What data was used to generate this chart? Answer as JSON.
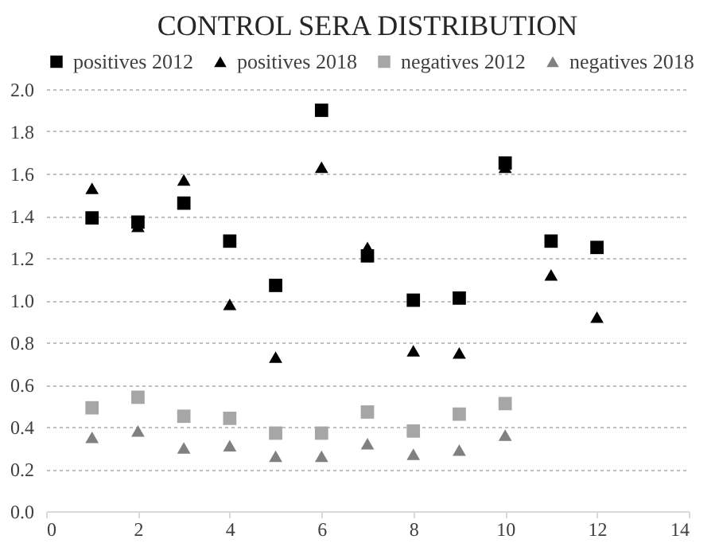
{
  "chart_data": {
    "type": "scatter",
    "title": "CONTROL SERA DISTRIBUTION",
    "x": [
      1,
      2,
      3,
      4,
      5,
      6,
      7,
      8,
      9,
      10,
      11,
      12
    ],
    "series": [
      {
        "name": "positives 2012",
        "color": "#000000",
        "marker": "square",
        "values": [
          1.39,
          1.37,
          1.46,
          1.28,
          1.07,
          1.9,
          1.21,
          1.0,
          1.01,
          1.65,
          1.28,
          1.25
        ]
      },
      {
        "name": "positives 2018",
        "color": "#000000",
        "marker": "triangle",
        "values": [
          1.53,
          1.35,
          1.57,
          0.98,
          0.73,
          1.63,
          1.25,
          0.76,
          0.75,
          1.63,
          1.12,
          0.92
        ]
      },
      {
        "name": "negatives 2012",
        "color": "#a6a6a6",
        "marker": "square",
        "values": [
          0.49,
          0.54,
          0.45,
          0.44,
          0.37,
          0.37,
          0.47,
          0.38,
          0.46,
          0.51,
          null,
          null
        ]
      },
      {
        "name": "negatives 2018",
        "color": "#808080",
        "marker": "triangle",
        "values": [
          0.35,
          0.38,
          0.3,
          0.31,
          0.26,
          0.26,
          0.32,
          0.27,
          0.29,
          0.36,
          null,
          null
        ]
      }
    ],
    "xlim": [
      0,
      14
    ],
    "xticks": [
      0,
      2,
      4,
      6,
      8,
      10,
      12,
      14
    ],
    "ylim": [
      0,
      2.0
    ],
    "yticks": [
      {
        "value": 0,
        "label": "0.0"
      },
      {
        "value": 0.2,
        "label": "0.2"
      },
      {
        "value": 0.4,
        "label": "0.4"
      },
      {
        "value": 0.6,
        "label": "0.6"
      },
      {
        "value": 0.8,
        "label": "0.8"
      },
      {
        "value": 1.0,
        "label": "1.0"
      },
      {
        "value": 1.2,
        "label": "1.2"
      },
      {
        "value": 1.4,
        "label": "1.4"
      },
      {
        "value": 1.6,
        "label": "1.6"
      },
      {
        "value": 1.8,
        "label": "1.8"
      },
      {
        "value": 2.0,
        "label": "2.0"
      }
    ],
    "grid": "y",
    "legend": "top"
  }
}
